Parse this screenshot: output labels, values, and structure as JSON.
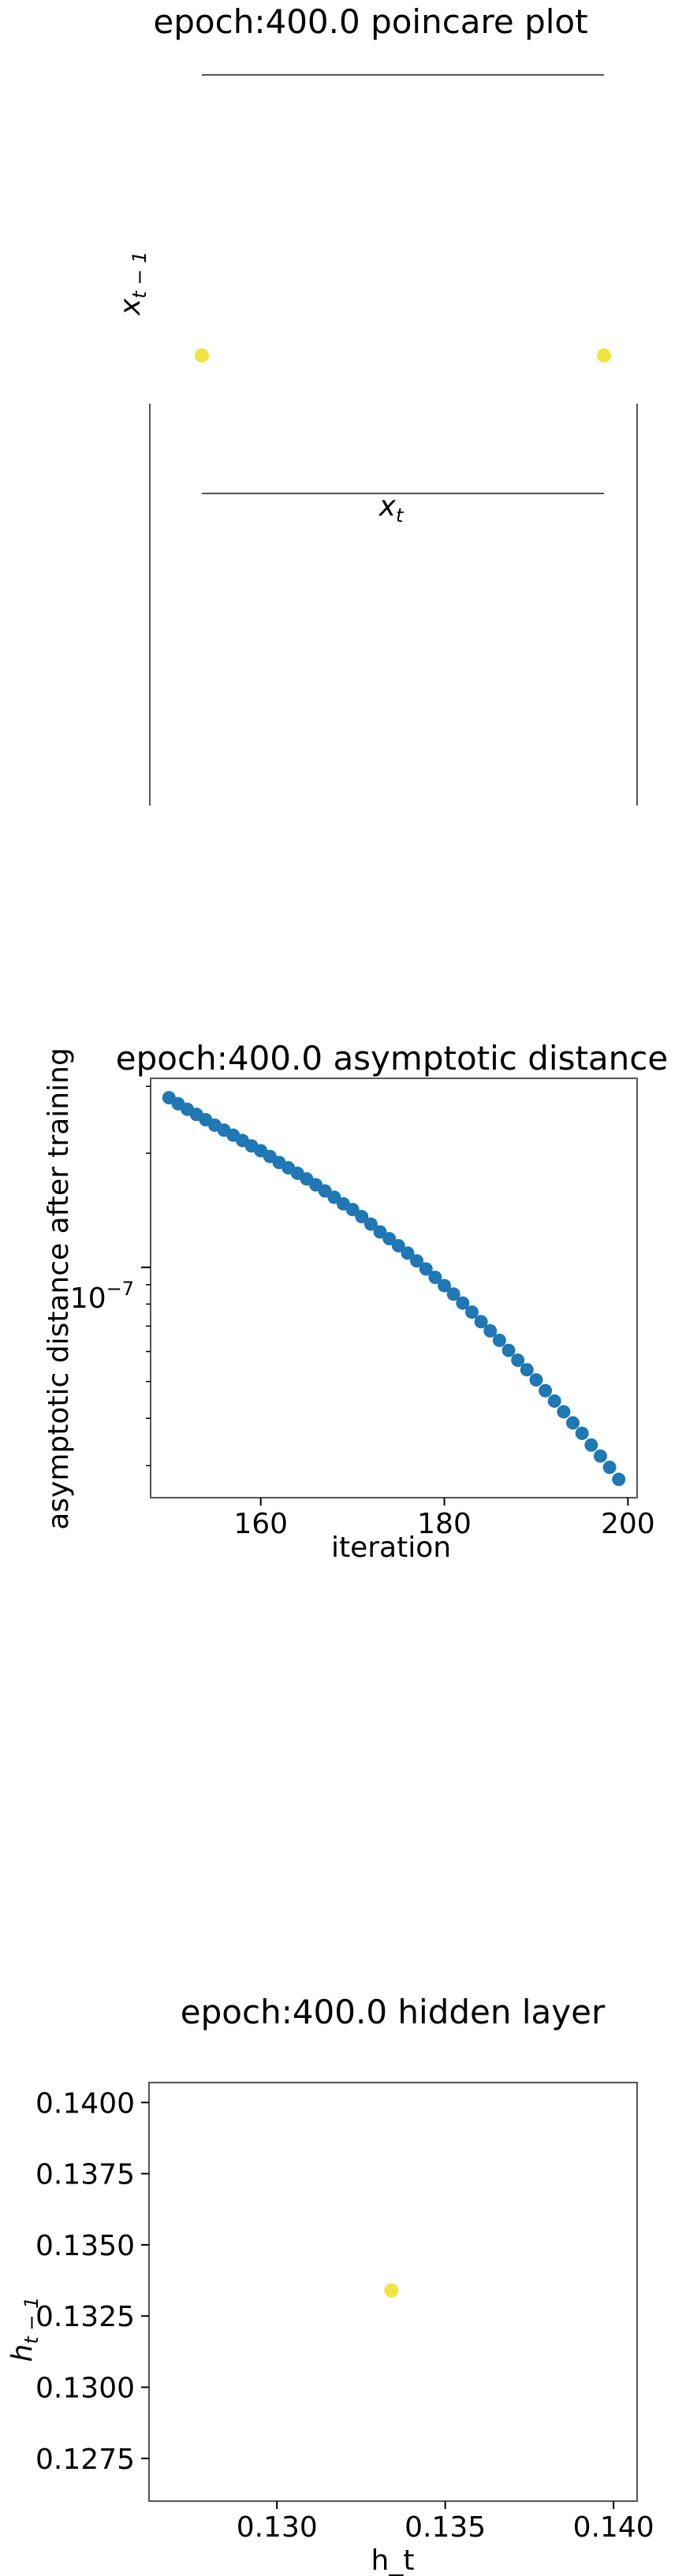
{
  "chart_data": [
    {
      "type": "scatter",
      "title": "epoch:400.0 poincare plot",
      "xlabel": "x_t",
      "ylabel": "x_{t-1}",
      "points": [
        {
          "x": 0,
          "y": 0
        },
        {
          "x": 1,
          "y": 0
        }
      ],
      "point_color": "#f0e442",
      "axes_visible": false,
      "grid": false
    },
    {
      "type": "scatter",
      "title": "epoch:400.0 asymptotic distance",
      "xlabel": "iteration",
      "ylabel": "asymptotic distance after training",
      "yscale": "log",
      "xlim": [
        148,
        201
      ],
      "xticks": [
        "160",
        "180",
        "200"
      ],
      "ytick_major": "10^{-7}",
      "point_color": "#1f77b4",
      "grid": false,
      "x": [
        150,
        151,
        152,
        153,
        154,
        155,
        156,
        157,
        158,
        159,
        160,
        161,
        162,
        163,
        164,
        165,
        166,
        167,
        168,
        169,
        170,
        171,
        172,
        173,
        174,
        175,
        176,
        177,
        178,
        179,
        180,
        181,
        182,
        183,
        184,
        185,
        186,
        187,
        188,
        189,
        190,
        191,
        192,
        193,
        194,
        195,
        196,
        197,
        198,
        199
      ],
      "y": [
        2.8e-07,
        2.7e-07,
        2.61e-07,
        2.53e-07,
        2.45e-07,
        2.37e-07,
        2.3e-07,
        2.23e-07,
        2.16e-07,
        2.09e-07,
        2.03e-07,
        1.96e-07,
        1.89e-07,
        1.83e-07,
        1.77e-07,
        1.71e-07,
        1.65e-07,
        1.59e-07,
        1.53e-07,
        1.47e-07,
        1.42e-07,
        1.36e-07,
        1.3e-07,
        1.24e-07,
        1.19e-07,
        1.14e-07,
        1.09e-07,
        1.04e-07,
        9.9e-08,
        9.41e-08,
        8.95e-08,
        8.5e-08,
        8.05e-08,
        7.62e-08,
        7.19e-08,
        6.8e-08,
        6.42e-08,
        6.04e-08,
        5.69e-08,
        5.37e-08,
        5.05e-08,
        4.73e-08,
        4.44e-08,
        4.16e-08,
        3.89e-08,
        3.65e-08,
        3.4e-08,
        3.18e-08,
        2.97e-08,
        2.76e-08
      ]
    },
    {
      "type": "scatter",
      "title": "epoch:400.0 hidden layer",
      "xlabel": "h_t",
      "ylabel": "h_{t-1}",
      "xlim": [
        0.1262,
        0.1407
      ],
      "ylim": [
        0.126,
        0.1407
      ],
      "xticks": [
        "0.130",
        "0.135",
        "0.140"
      ],
      "yticks": [
        "0.1275",
        "0.1300",
        "0.1325",
        "0.1350",
        "0.1375",
        "0.1400"
      ],
      "points": [
        {
          "x": 0.1334,
          "y": 0.1334
        }
      ],
      "point_color": "#f0e442",
      "grid": false
    }
  ]
}
